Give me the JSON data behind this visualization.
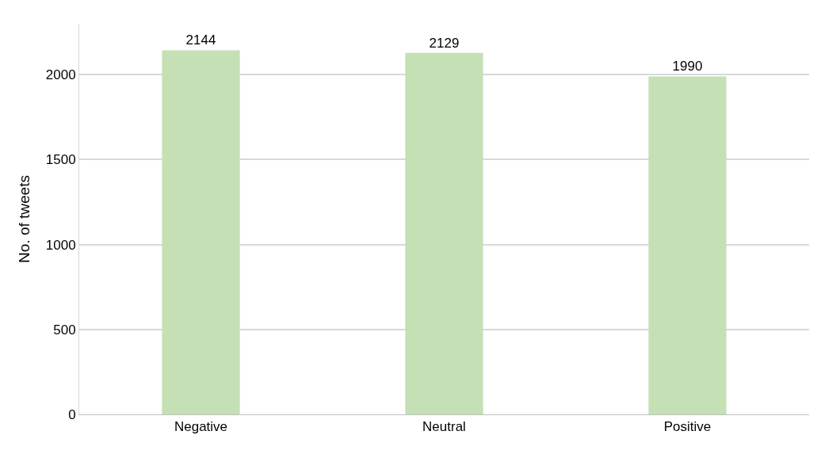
{
  "chart_data": {
    "type": "bar",
    "ylabel": "No. of tweets",
    "categories": [
      "Negative",
      "Neutral",
      "Positive"
    ],
    "values": [
      2144,
      2129,
      1990
    ],
    "color": "#c5e0b4",
    "ylim": [
      0,
      2300
    ],
    "yticks": [
      0,
      500,
      1000,
      1500,
      2000
    ],
    "grid": "y",
    "data_labels": true
  }
}
